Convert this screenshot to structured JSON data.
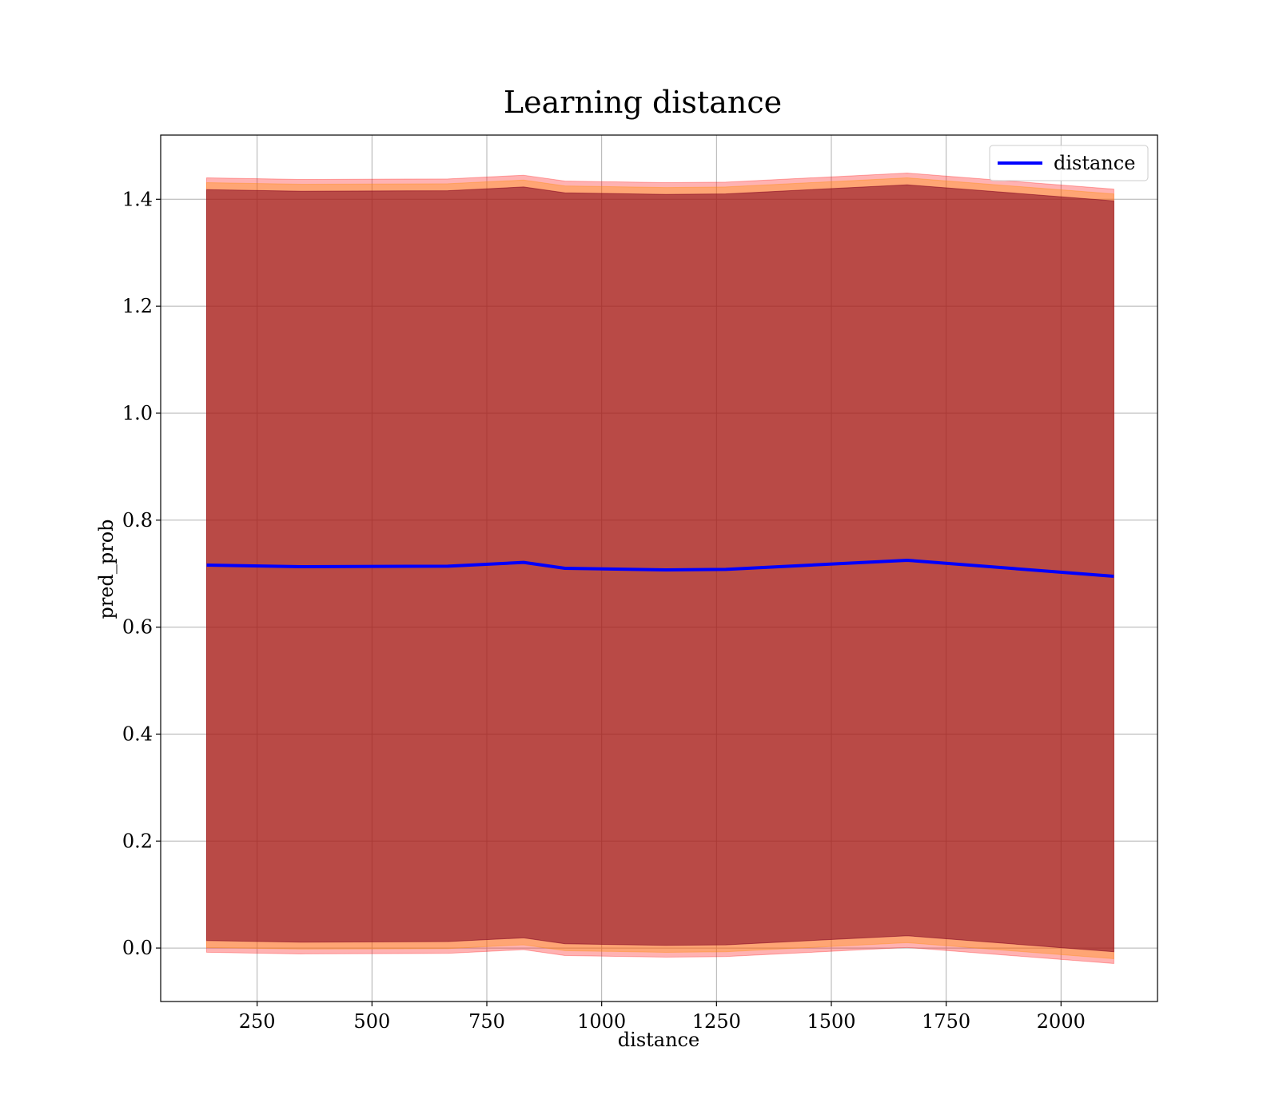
{
  "chart_data": {
    "type": "line",
    "title": "Learning distance",
    "xlabel": "distance",
    "ylabel": "pred_prob",
    "xlim": [
      40,
      2210
    ],
    "ylim": [
      -0.1,
      1.52
    ],
    "xticks": [
      250,
      500,
      750,
      1000,
      1250,
      1500,
      1750,
      2000
    ],
    "yticks": [
      0.0,
      0.2,
      0.4,
      0.6,
      0.8,
      1.0,
      1.2,
      1.4
    ],
    "grid": true,
    "legend_position": "top-right",
    "x": [
      140,
      345,
      665,
      830,
      920,
      1140,
      1270,
      1665,
      2115
    ],
    "series": [
      {
        "name": "distance",
        "color": "#0000ff",
        "values": [
          0.716,
          0.713,
          0.714,
          0.721,
          0.71,
          0.707,
          0.708,
          0.725,
          0.695
        ]
      }
    ],
    "bands": [
      {
        "color": "#ff0000",
        "opacity": 0.3,
        "upper": [
          1.44,
          1.437,
          1.438,
          1.445,
          1.434,
          1.431,
          1.432,
          1.449,
          1.419
        ],
        "lower": [
          -0.008,
          -0.011,
          -0.01,
          -0.003,
          -0.014,
          -0.017,
          -0.016,
          0.001,
          -0.029
        ]
      },
      {
        "color": "#ff8c00",
        "opacity": 0.35,
        "upper": [
          1.431,
          1.428,
          1.429,
          1.436,
          1.425,
          1.422,
          1.423,
          1.44,
          1.41
        ],
        "lower": [
          0.001,
          -0.002,
          -0.001,
          0.006,
          -0.005,
          -0.008,
          -0.007,
          0.01,
          -0.02
        ]
      },
      {
        "color": "#800020",
        "opacity": 0.55,
        "upper": [
          1.418,
          1.415,
          1.416,
          1.423,
          1.412,
          1.409,
          1.41,
          1.427,
          1.397
        ],
        "lower": [
          0.014,
          0.011,
          0.012,
          0.019,
          0.008,
          0.005,
          0.006,
          0.023,
          -0.007
        ]
      }
    ]
  }
}
